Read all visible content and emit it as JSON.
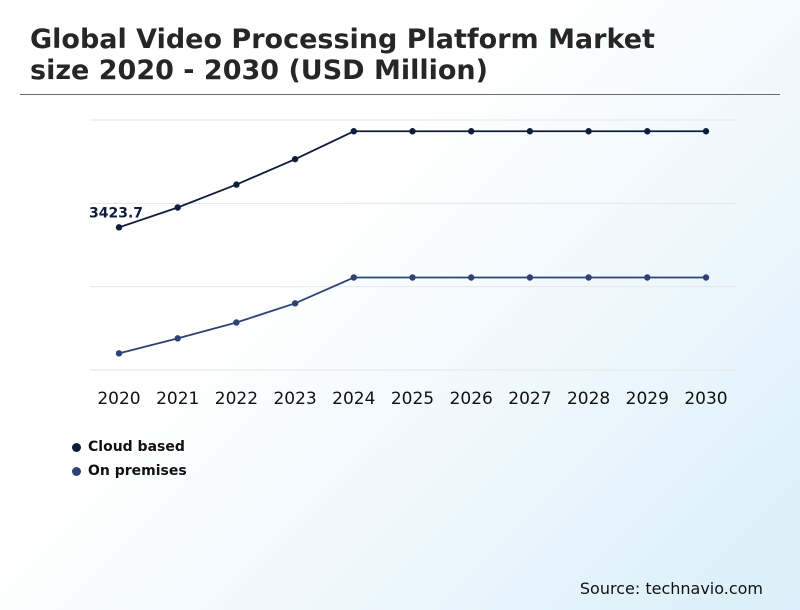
{
  "title": "Global Video Processing Platform Market\nsize 2020 - 2030 (USD Million)",
  "source": "Source: technavio.com",
  "chart_data": {
    "type": "line",
    "title": "Global Video Processing Platform Market size 2020 - 2030 (USD Million)",
    "categories": [
      "2020",
      "2021",
      "2022",
      "2023",
      "2024",
      "2025",
      "2026",
      "2027",
      "2028",
      "2029",
      "2030"
    ],
    "series": [
      {
        "name": "Cloud based",
        "color": "#0f1d3c",
        "values": [
          3423.7,
          3900,
          4450,
          5060,
          5730,
          5730,
          5730,
          5730,
          5730,
          5730,
          5730
        ]
      },
      {
        "name": "On premises",
        "color": "#2e4373",
        "values": [
          400,
          760,
          1140,
          1600,
          2220,
          2220,
          2220,
          2220,
          2220,
          2220,
          2220
        ]
      }
    ],
    "annotations": [
      {
        "series": "Cloud based",
        "category": "2020",
        "label": "3423.7"
      }
    ],
    "ylim": [
      0,
      6000
    ],
    "grid": true,
    "legend_position": "bottom-left"
  }
}
